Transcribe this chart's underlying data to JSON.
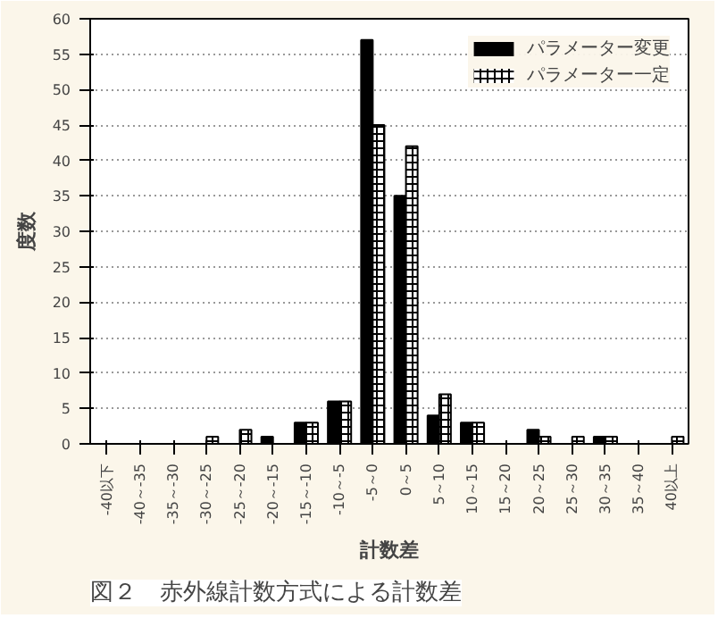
{
  "chart_data": {
    "type": "bar",
    "xlabel": "計数差",
    "ylabel": "度数",
    "categories": [
      "-40以下",
      "-40～-35",
      "-35～-30",
      "-30～-25",
      "-25～-20",
      "-20～-15",
      "-15～-10",
      "-10～-5",
      "-5～0",
      "0～5",
      "5～10",
      "10～15",
      "15～20",
      "20～25",
      "25～30",
      "30～35",
      "35～40",
      "40以上"
    ],
    "series": [
      {
        "name": "パラメーター変更",
        "color": "#000000",
        "values": [
          0,
          0,
          0,
          0,
          0,
          1,
          3,
          6,
          57,
          35,
          4,
          3,
          0,
          2,
          0,
          1,
          0,
          0
        ]
      },
      {
        "name": "パラメーター一定",
        "color": "#ffffff",
        "values": [
          0,
          0,
          0,
          1,
          2,
          0,
          3,
          6,
          45,
          42,
          7,
          3,
          0,
          1,
          1,
          1,
          0,
          1
        ]
      }
    ],
    "ylim": [
      0,
      60
    ],
    "yticks": [
      0,
      5,
      10,
      15,
      20,
      25,
      30,
      35,
      40,
      45,
      50,
      55,
      60
    ],
    "grid": "y",
    "legend": "top right",
    "annotations": [
      "図２　赤外線計数方式による計数差"
    ]
  }
}
